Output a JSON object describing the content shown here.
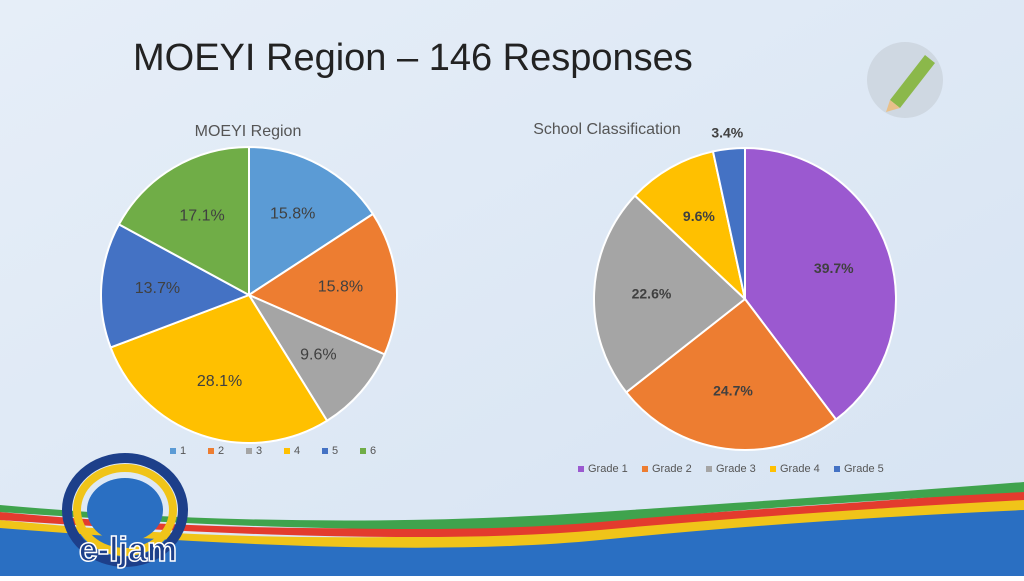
{
  "slide": {
    "title": "MOEYI Region – 146 Responses",
    "logo_text": "e-ljam"
  },
  "chart_data": [
    {
      "type": "pie",
      "title": "MOEYI Region",
      "categories": [
        "1",
        "2",
        "3",
        "4",
        "5",
        "6"
      ],
      "values": [
        15.8,
        15.8,
        9.6,
        28.1,
        13.7,
        17.1
      ],
      "value_labels": [
        "15.8%",
        "15.8%",
        "9.6%",
        "28.1%",
        "13.7%",
        "17.1%"
      ],
      "colors": [
        "#5b9bd5",
        "#ed7d31",
        "#a5a5a5",
        "#ffc000",
        "#4472c4",
        "#70ad47"
      ],
      "legend": "bottom"
    },
    {
      "type": "pie",
      "title": "School Classification",
      "categories": [
        "Grade 1",
        "Grade 2",
        "Grade 3",
        "Grade 4",
        "Grade 5"
      ],
      "values": [
        39.7,
        24.7,
        22.6,
        9.6,
        3.4
      ],
      "value_labels": [
        "39.7%",
        "24.7%",
        "22.6%",
        "9.6%",
        "3.4%"
      ],
      "colors": [
        "#9b59d0",
        "#ed7d31",
        "#a5a5a5",
        "#ffc000",
        "#4472c4"
      ],
      "legend": "bottom"
    }
  ]
}
